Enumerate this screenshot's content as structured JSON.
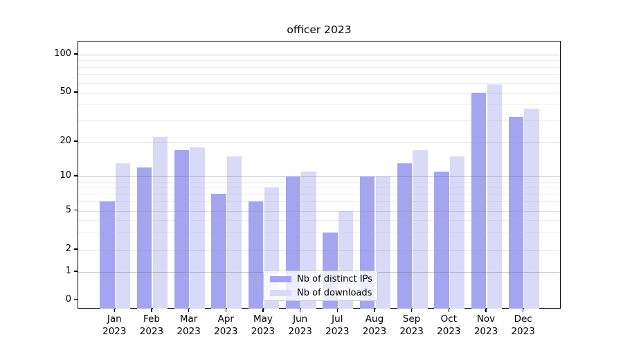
{
  "title": "officer 2023",
  "legend": {
    "items": [
      {
        "label": "Nb of distinct IPs"
      },
      {
        "label": "Nb of downloads"
      }
    ]
  },
  "colors": {
    "distinct_ips_bar": "#a4a4f0",
    "downloads_bar": "#d9d9f8",
    "grid_major": "#cfcfcf",
    "grid_mid": "#dfdfdf",
    "grid_minor": "#ececec",
    "axis": "#000000",
    "background": "#ffffff"
  },
  "y_axis": {
    "tick_labels": [
      "100",
      "50",
      "20",
      "10",
      "5",
      "2",
      "1",
      "0"
    ]
  },
  "x_axis": {
    "ticks": [
      {
        "month": "Jan",
        "year": "2023"
      },
      {
        "month": "Feb",
        "year": "2023"
      },
      {
        "month": "Mar",
        "year": "2023"
      },
      {
        "month": "Apr",
        "year": "2023"
      },
      {
        "month": "May",
        "year": "2023"
      },
      {
        "month": "Jun",
        "year": "2023"
      },
      {
        "month": "Jul",
        "year": "2023"
      },
      {
        "month": "Aug",
        "year": "2023"
      },
      {
        "month": "Sep",
        "year": "2023"
      },
      {
        "month": "Oct",
        "year": "2023"
      },
      {
        "month": "Nov",
        "year": "2023"
      },
      {
        "month": "Dec",
        "year": "2023"
      }
    ]
  },
  "chart_data": {
    "type": "bar",
    "title": "officer 2023",
    "categories": [
      "Jan 2023",
      "Feb 2023",
      "Mar 2023",
      "Apr 2023",
      "May 2023",
      "Jun 2023",
      "Jul 2023",
      "Aug 2023",
      "Sep 2023",
      "Oct 2023",
      "Nov 2023",
      "Dec 2023"
    ],
    "series": [
      {
        "name": "Nb of distinct IPs",
        "color": "#a4a4f0",
        "values": [
          6,
          12,
          17,
          7,
          6,
          10,
          3,
          10,
          13,
          11,
          50,
          32
        ]
      },
      {
        "name": "Nb of downloads",
        "color": "#d9d9f8",
        "values": [
          13,
          22,
          18,
          15,
          8,
          11,
          5,
          10,
          17,
          15,
          58,
          37
        ]
      }
    ],
    "xlabel": "",
    "ylabel": "",
    "yscale": "symlog",
    "yticks": [
      0,
      1,
      2,
      5,
      10,
      20,
      50,
      100
    ],
    "ylim": [
      -0.35,
      128
    ],
    "grid": true,
    "legend_position": "lower center"
  }
}
